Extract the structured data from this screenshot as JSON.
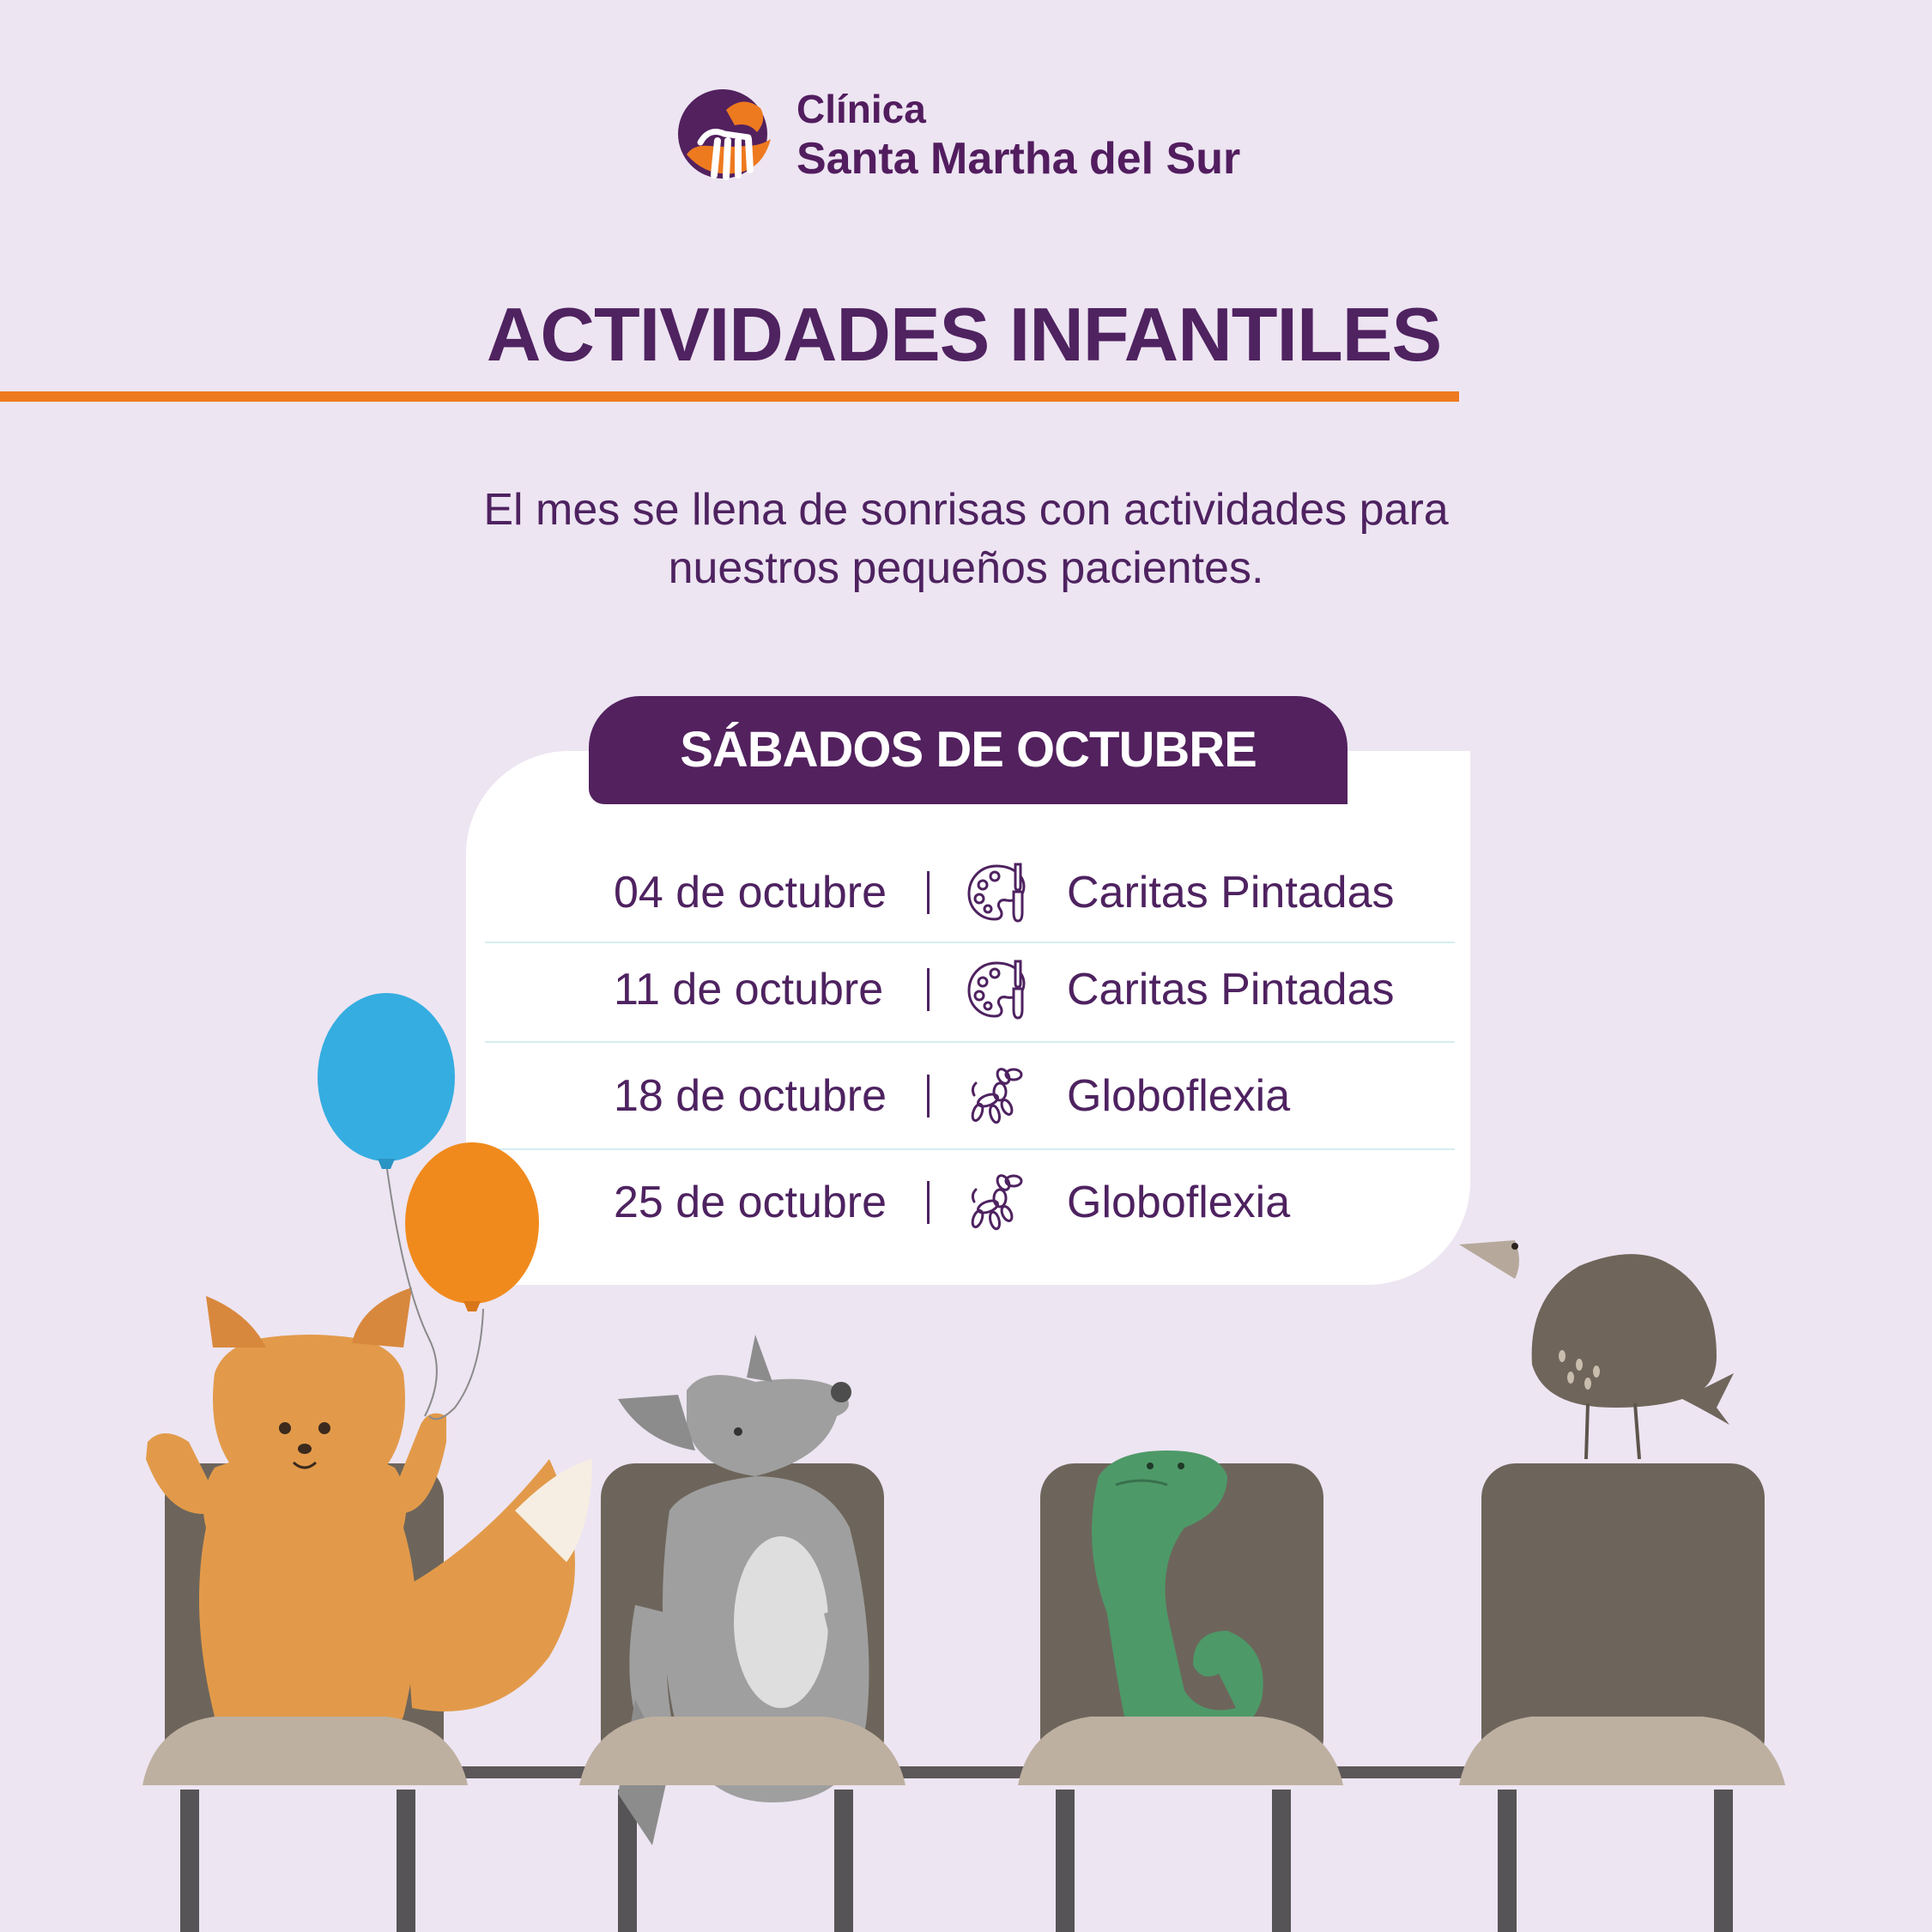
{
  "brand": {
    "line1": "Clínica",
    "line2": "Santa Martha del Sur",
    "colors": {
      "purple": "#52215e",
      "orange": "#ee7a1f"
    }
  },
  "header": {
    "title": "ACTIVIDADES INFANTILES"
  },
  "intro": {
    "line1": "El mes se llena de sonrisas con actividades para",
    "line2": "nuestros pequeños pacientes."
  },
  "schedule": {
    "heading": "SÁBADOS DE OCTUBRE",
    "rows": [
      {
        "date": "04 de octubre",
        "icon": "paint-palette-icon",
        "activity": "Caritas Pintadas"
      },
      {
        "date": "11 de octubre",
        "icon": "paint-palette-icon",
        "activity": "Caritas Pintadas"
      },
      {
        "date": "18 de octubre",
        "icon": "balloon-dog-icon",
        "activity": "Globoflexia"
      },
      {
        "date": "25 de octubre",
        "icon": "balloon-dog-icon",
        "activity": "Globoflexia"
      }
    ]
  },
  "illustration": {
    "characters": [
      "fox",
      "wolf",
      "snake",
      "bird"
    ],
    "balloon_colors": [
      "#35ade0",
      "#f3901f"
    ]
  }
}
